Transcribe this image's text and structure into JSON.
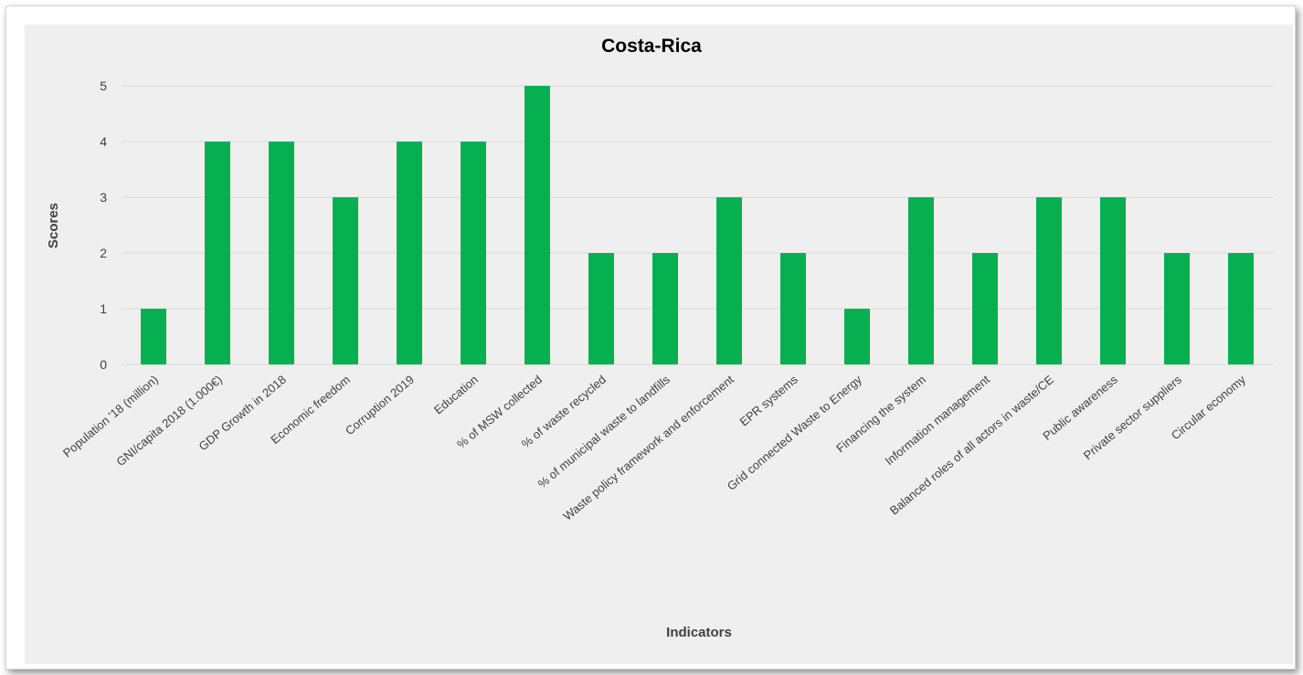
{
  "chart_data": {
    "type": "bar",
    "title": "Costa-Rica",
    "xlabel": "Indicators",
    "ylabel": "Scores",
    "ylim": [
      0,
      5
    ],
    "yticks": [
      "0",
      "1",
      "2",
      "3",
      "4",
      "5"
    ],
    "grid": true,
    "bar_color": "#06b050",
    "categories": [
      "Population '18 (million)",
      "GNI/capita 2018 (1.000€)",
      "GDP Growth in 2018",
      "Economic freedom",
      "Corruption 2019",
      "Education",
      "% of MSW collected",
      "% of waste recycled",
      "% of municipal waste to landfills",
      "Waste policy framework and enforcement",
      "EPR systems",
      "Grid connected Waste to Energy",
      "Financing the system",
      "Information management",
      "Balanced roles of all actors in waste/CE",
      "Public awareness",
      "Private sector suppliers",
      "Circular economy"
    ],
    "values": [
      1,
      4,
      4,
      3,
      4,
      4,
      5,
      2,
      2,
      3,
      2,
      1,
      3,
      2,
      3,
      3,
      2,
      2
    ]
  }
}
